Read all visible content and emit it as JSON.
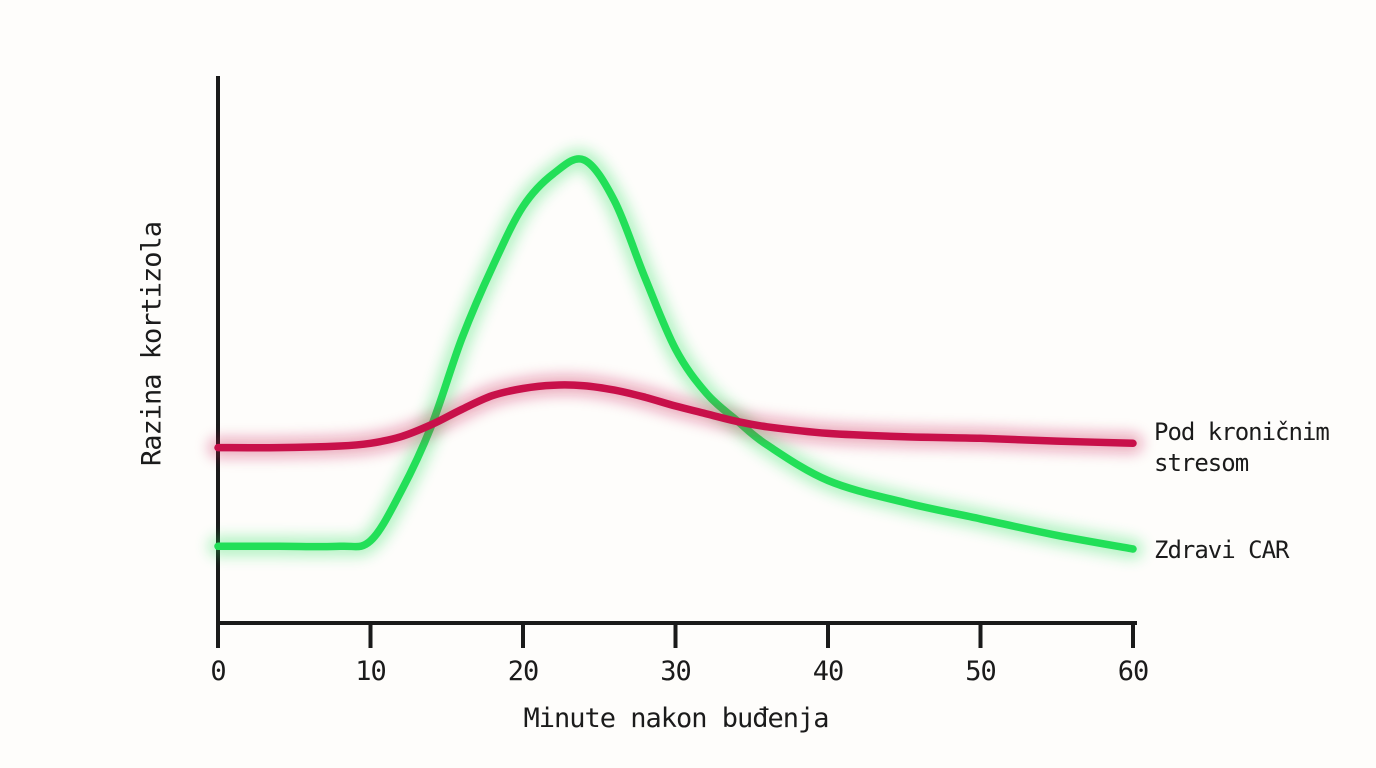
{
  "figure": {
    "background": "#fefdfb",
    "text_color": "#1b1b1b",
    "axis_color": "#1a1a1a"
  },
  "chart_data": {
    "type": "line",
    "title": "",
    "xlabel": "Minute nakon buđenja",
    "ylabel": "Razina kortizola",
    "x_ticks": [
      0,
      10,
      20,
      30,
      40,
      50,
      60
    ],
    "xlim": [
      0,
      60
    ],
    "ylim": [
      0,
      100
    ],
    "grid": false,
    "y_ticks_visible": false,
    "legend_position": "right-of-line-ends",
    "series": [
      {
        "name": "Zdravi CAR",
        "color": "#22df58",
        "style": "glow",
        "x": [
          0,
          4,
          8,
          10,
          12,
          14,
          16,
          18,
          20,
          22,
          24,
          26,
          28,
          30,
          32,
          34,
          36,
          40,
          45,
          50,
          55,
          60
        ],
        "y": [
          14,
          14,
          14,
          15,
          24,
          36,
          52,
          65,
          76,
          82,
          84.5,
          77,
          63,
          50,
          42,
          37,
          32.5,
          26,
          22,
          19,
          16,
          13.5
        ]
      },
      {
        "name": "Pod kroničnim stresom",
        "color": "#c8104a",
        "style": "glow",
        "x": [
          0,
          4,
          8,
          10,
          12,
          14,
          16,
          18,
          20,
          22,
          24,
          26,
          28,
          30,
          32,
          34,
          36,
          40,
          45,
          50,
          55,
          60
        ],
        "y": [
          32,
          32,
          32.3,
          32.8,
          34,
          36.2,
          39,
          41.5,
          42.8,
          43.4,
          43.3,
          42.5,
          41.2,
          39.6,
          38.2,
          36.8,
          35.8,
          34.6,
          34,
          33.7,
          33.2,
          32.8
        ]
      }
    ]
  }
}
